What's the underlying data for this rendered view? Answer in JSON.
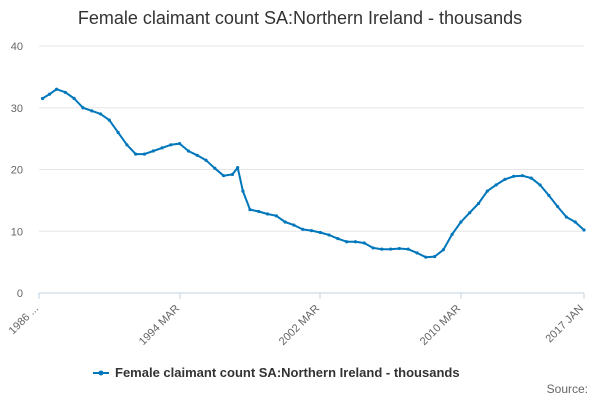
{
  "chart_data": {
    "type": "line",
    "title": "Female claimant count SA:Northern Ireland - thousands",
    "source_label": "Source:",
    "xlabel": "",
    "ylabel": "",
    "ylim": [
      0,
      40
    ],
    "y_ticks": [
      0,
      10,
      20,
      30,
      40
    ],
    "x_tick_labels": [
      "1986 ...",
      "1994 MAR",
      "2002 MAR",
      "2010 MAR",
      "2017 JAN"
    ],
    "grid": true,
    "legend_position": "bottom",
    "series_color": "#0077bb",
    "series": [
      {
        "name": "Female claimant count SA:Northern Ireland - thousands",
        "x": [
          1986.2,
          1986.6,
          1987.0,
          1987.5,
          1988.0,
          1988.5,
          1989.0,
          1989.5,
          1990.0,
          1990.5,
          1991.0,
          1991.5,
          1992.0,
          1992.5,
          1993.0,
          1993.5,
          1994.0,
          1994.5,
          1995.0,
          1995.5,
          1996.0,
          1996.5,
          1997.0,
          1997.3,
          1997.6,
          1998.0,
          1998.5,
          1999.0,
          1999.5,
          2000.0,
          2000.5,
          2001.0,
          2001.5,
          2002.0,
          2002.5,
          2003.0,
          2003.5,
          2004.0,
          2004.5,
          2005.0,
          2005.5,
          2006.0,
          2006.5,
          2007.0,
          2007.5,
          2008.0,
          2008.5,
          2009.0,
          2009.5,
          2010.0,
          2010.5,
          2011.0,
          2011.5,
          2012.0,
          2012.5,
          2013.0,
          2013.5,
          2014.0,
          2014.5,
          2015.0,
          2015.5,
          2016.0,
          2016.5,
          2017.0
        ],
        "values": [
          31.5,
          32.2,
          33.0,
          32.5,
          31.5,
          30.0,
          29.5,
          29.0,
          28.0,
          26.0,
          24.0,
          22.5,
          22.5,
          23.0,
          23.5,
          24.0,
          24.2,
          23.0,
          22.3,
          21.5,
          20.2,
          19.0,
          19.2,
          20.3,
          16.5,
          13.5,
          13.2,
          12.8,
          12.5,
          11.5,
          11.0,
          10.3,
          10.1,
          9.8,
          9.4,
          8.8,
          8.3,
          8.3,
          8.1,
          7.3,
          7.1,
          7.1,
          7.2,
          7.1,
          6.5,
          5.8,
          5.9,
          7.0,
          9.5,
          11.5,
          13.0,
          14.5,
          16.5,
          17.5,
          18.4,
          18.9,
          19.0,
          18.6,
          17.5,
          15.8,
          14.0,
          12.3,
          11.5,
          10.2
        ]
      }
    ]
  }
}
